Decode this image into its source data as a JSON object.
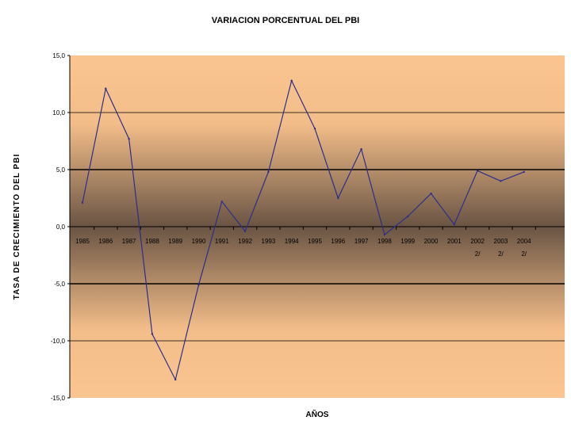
{
  "chart_data": {
    "type": "line",
    "title": "VARIACION PORCENTUAL DEL PBI",
    "xlabel": "AÑOS",
    "ylabel": "TASA DE CRECIMIENTO DEL PBI",
    "ylim": [
      -15,
      15
    ],
    "y_ticks": [
      "15,0",
      "10,0",
      "5,0",
      "0,0",
      "-5,0",
      "-10,0",
      "-15,0"
    ],
    "grid": "horizontal",
    "categories": [
      {
        "line1": "1985",
        "line2": ""
      },
      {
        "line1": "1986",
        "line2": ""
      },
      {
        "line1": "1987",
        "line2": ""
      },
      {
        "line1": "1988",
        "line2": ""
      },
      {
        "line1": "1989",
        "line2": ""
      },
      {
        "line1": "1990",
        "line2": ""
      },
      {
        "line1": "1991",
        "line2": ""
      },
      {
        "line1": "1992",
        "line2": ""
      },
      {
        "line1": "1993",
        "line2": ""
      },
      {
        "line1": "1994",
        "line2": ""
      },
      {
        "line1": "1995",
        "line2": ""
      },
      {
        "line1": "1996",
        "line2": ""
      },
      {
        "line1": "1997",
        "line2": ""
      },
      {
        "line1": "1998",
        "line2": ""
      },
      {
        "line1": "1999",
        "line2": ""
      },
      {
        "line1": "2000",
        "line2": ""
      },
      {
        "line1": "2001",
        "line2": ""
      },
      {
        "line1": "2002",
        "line2": "2/"
      },
      {
        "line1": "2003",
        "line2": "2/"
      },
      {
        "line1": "2004",
        "line2": "2/"
      }
    ],
    "series": [
      {
        "values": [
          2.1,
          12.1,
          7.7,
          -9.4,
          -13.4,
          -5.1,
          2.2,
          -0.4,
          4.8,
          12.8,
          8.6,
          2.5,
          6.8,
          -0.7,
          0.9,
          2.9,
          0.2,
          4.9,
          4.0,
          4.8
        ]
      }
    ],
    "colors": {
      "line": "#2b2f8a",
      "bg_edge": "#fac590",
      "bg_center": "#6a5444"
    }
  }
}
